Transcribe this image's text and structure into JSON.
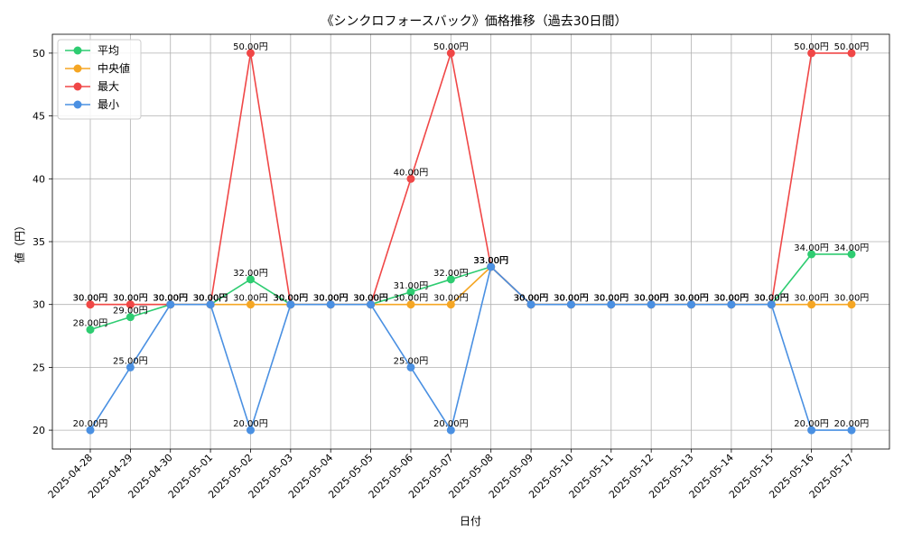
{
  "chart_data": {
    "type": "line",
    "title": "《シンクロフォースバック》価格推移（過去30日間）",
    "xlabel": "日付",
    "ylabel": "値（円）",
    "x": [
      "2025-04-28",
      "2025-04-29",
      "2025-04-30",
      "2025-05-01",
      "2025-05-02",
      "2025-05-03",
      "2025-05-04",
      "2025-05-05",
      "2025-05-06",
      "2025-05-07",
      "2025-05-08",
      "2025-05-09",
      "2025-05-10",
      "2025-05-11",
      "2025-05-12",
      "2025-05-13",
      "2025-05-14",
      "2025-05-15",
      "2025-05-16",
      "2025-05-17"
    ],
    "ylim": [
      18.5,
      51.5
    ],
    "yticks": [
      20,
      25,
      30,
      35,
      40,
      45,
      50
    ],
    "grid": true,
    "legend": "top-left",
    "label_suffix": "円",
    "series": [
      {
        "name": "平均",
        "color": "#2ecc71",
        "values": [
          28,
          29,
          30,
          30,
          32,
          30,
          30,
          30,
          31,
          32,
          33,
          30,
          30,
          30,
          30,
          30,
          30,
          30,
          34,
          34
        ]
      },
      {
        "name": "中央値",
        "color": "#f5a623",
        "values": [
          30,
          30,
          30,
          30,
          30,
          30,
          30,
          30,
          30,
          30,
          33,
          30,
          30,
          30,
          30,
          30,
          30,
          30,
          30,
          30
        ]
      },
      {
        "name": "最大",
        "color": "#f04747",
        "values": [
          30,
          30,
          30,
          30,
          50,
          30,
          30,
          30,
          40,
          50,
          33,
          30,
          30,
          30,
          30,
          30,
          30,
          30,
          50,
          50
        ]
      },
      {
        "name": "最小",
        "color": "#4a90e2",
        "values": [
          20,
          25,
          30,
          30,
          20,
          30,
          30,
          30,
          25,
          20,
          33,
          30,
          30,
          30,
          30,
          30,
          30,
          30,
          20,
          20
        ]
      }
    ]
  }
}
